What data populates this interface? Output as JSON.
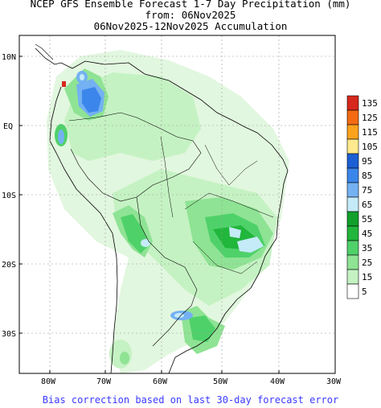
{
  "title": {
    "line1": "NCEP GFS Ensemble Forecast 1-7 Day Precipitation (mm)",
    "line2": "from: 06Nov2025",
    "line3": "06Nov2025-12Nov2025 Accumulation"
  },
  "axes": {
    "lat_labels": [
      "10N",
      "EQ",
      "10S",
      "20S",
      "30S"
    ],
    "lon_labels": [
      "80W",
      "70W",
      "60W",
      "50W",
      "40W",
      "30W"
    ]
  },
  "colorbar": {
    "levels": [
      "135",
      "125",
      "115",
      "105",
      "95",
      "85",
      "75",
      "65",
      "55",
      "45",
      "35",
      "25",
      "15",
      "5"
    ],
    "colors": [
      "#d6281c",
      "#f36a13",
      "#fca31d",
      "#fee98c",
      "#1c5fd4",
      "#3b86ea",
      "#74b1f2",
      "#c5ebf8",
      "#12a02b",
      "#21b63c",
      "#4fd16a",
      "#8fe394",
      "#c5f2c3",
      "#ffffff"
    ]
  },
  "footer": "Bias correction based on last 30-day forecast error"
}
